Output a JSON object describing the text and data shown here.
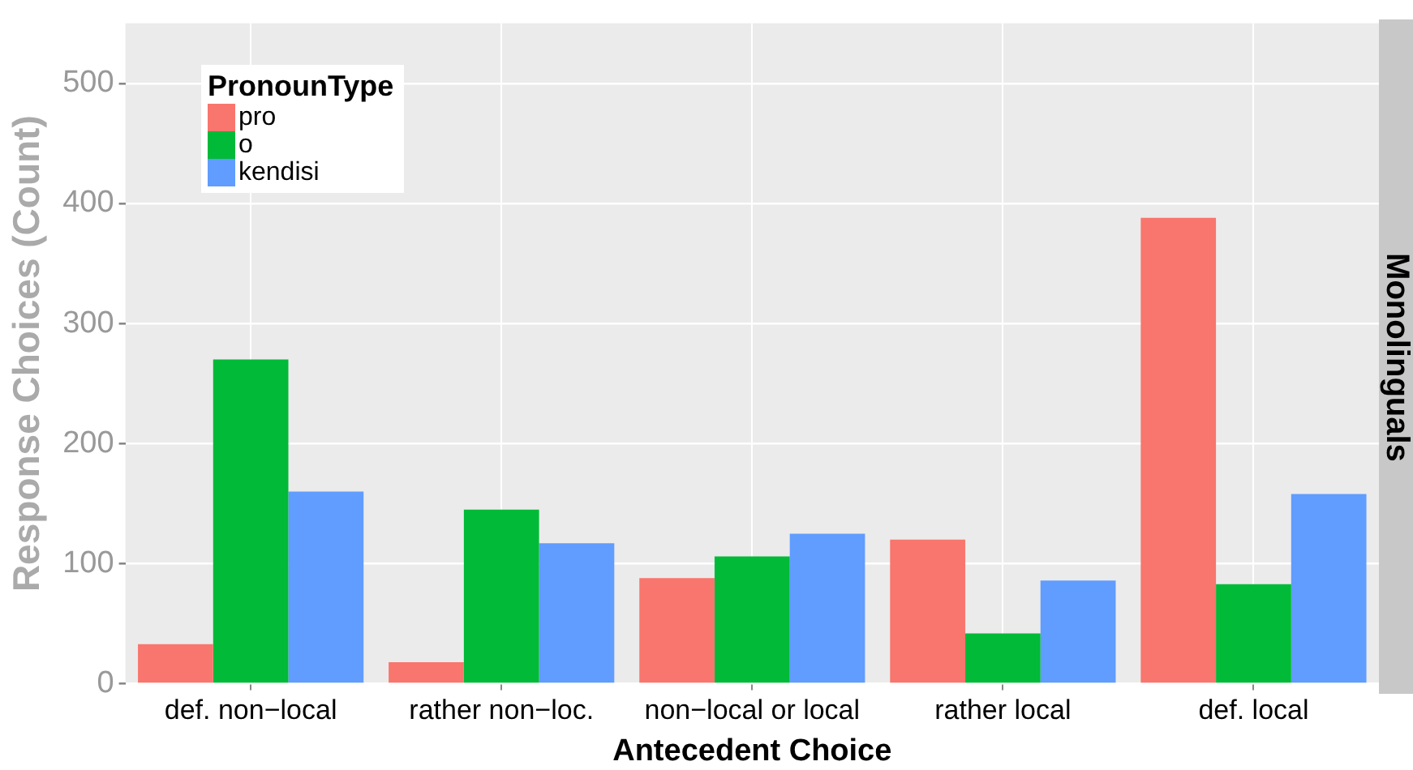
{
  "chart_data": {
    "type": "bar",
    "xlabel": "Antecedent Choice",
    "ylabel": "Response Choices (Count)",
    "legend_title": "PronounType",
    "annotations": [
      "Monolinguals"
    ],
    "categories": [
      "def. non−local",
      "rather non−loc.",
      "non−local or local",
      "rather local",
      "def. local"
    ],
    "series": [
      {
        "name": "pro",
        "color": "#f8766d",
        "values": [
          33,
          18,
          88,
          120,
          388
        ]
      },
      {
        "name": "o",
        "color": "#00ba38",
        "values": [
          270,
          145,
          106,
          42,
          83
        ]
      },
      {
        "name": "kendisi",
        "color": "#619cff",
        "values": [
          160,
          117,
          125,
          86,
          158
        ]
      }
    ],
    "ylim": [
      0,
      550
    ],
    "yticks": [
      0,
      100,
      200,
      300,
      400,
      500
    ],
    "grid": true,
    "legend": "top left"
  }
}
